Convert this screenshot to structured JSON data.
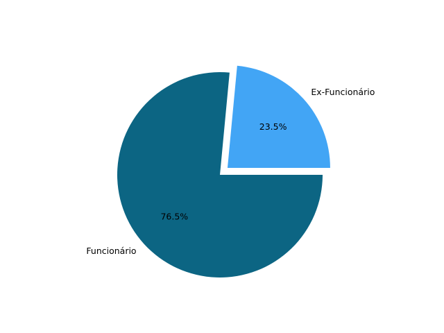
{
  "chart_data": {
    "type": "pie",
    "categories": [
      "Ex-Funcionário",
      "Funcionário"
    ],
    "values": [
      23.5,
      76.5
    ],
    "percent_labels": [
      "23.5%",
      "76.5%"
    ],
    "colors": [
      "#42a5f5",
      "#0c6583"
    ],
    "exploded": [
      true,
      false
    ],
    "start_angle_deg": 0,
    "direction": "counterclockwise"
  }
}
